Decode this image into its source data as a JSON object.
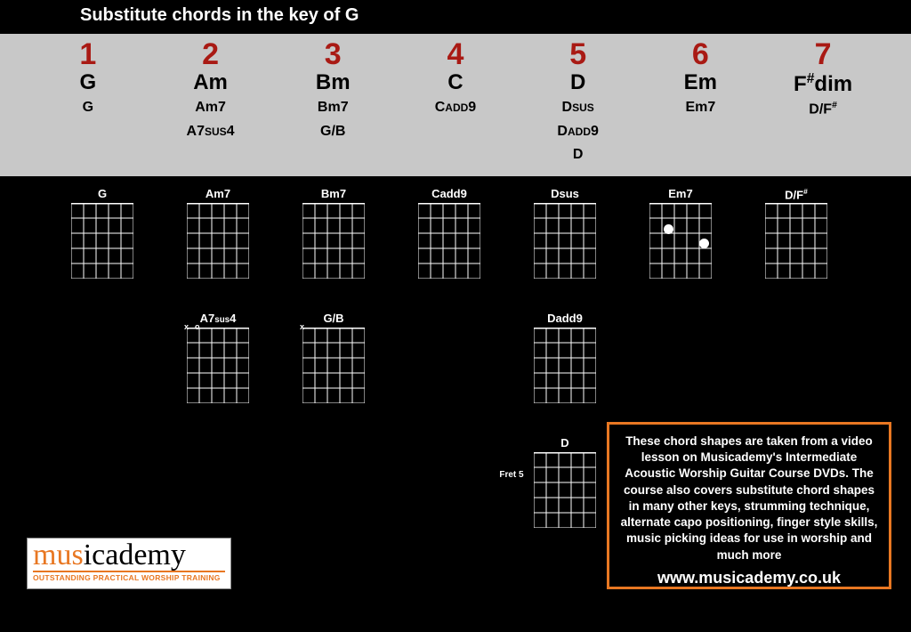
{
  "title": "Substitute chords in the key of G",
  "degrees": [
    {
      "num": "1",
      "primary": "G",
      "subs": [
        "G"
      ]
    },
    {
      "num": "2",
      "primary": "Am",
      "subs": [
        "Am7",
        "A7sus4"
      ]
    },
    {
      "num": "3",
      "primary": "Bm",
      "subs": [
        "Bm7",
        "G/B"
      ]
    },
    {
      "num": "4",
      "primary": "C",
      "subs": [
        "Cadd9"
      ]
    },
    {
      "num": "5",
      "primary": "D",
      "subs": [
        "Dsus",
        "Dadd9",
        "D"
      ]
    },
    {
      "num": "6",
      "primary": "Em",
      "subs": [
        "Em7"
      ]
    },
    {
      "num": "7",
      "primary": "F#dim",
      "subs": [
        "D/F#"
      ]
    }
  ],
  "chord_row1_labels": [
    "G",
    "Am7",
    "Bm7",
    "Cadd9",
    "Dsus",
    "Em7",
    "D/F#"
  ],
  "chord_row2_labels": [
    "A7sus4",
    "G/B",
    "Dadd9"
  ],
  "chord_row3a": "D",
  "chord_row3b": "Fret 5",
  "diagram": {
    "strings": 6,
    "frets": 5,
    "string_color": "#ffffff",
    "fret_color": "#ffffff",
    "dot_color": "#ffffff",
    "nut_width": 3,
    "line_width": 1
  },
  "infobox": "These chord shapes are taken from a video lesson on Musicademy's Intermediate Acoustic Worship Guitar Course DVDs. The course also covers substitute chord shapes in many other keys, strumming technique, alternate capo positioning, finger style skills, music picking ideas for use in worship and much more",
  "info_url": "www.musicademy.co.uk",
  "logo": {
    "brand": "musicademy",
    "tag": "OUTSTANDING PRACTICAL WORSHIP TRAINING",
    "accent": "#e87722"
  },
  "colors": {
    "bg": "#000000",
    "panel": "#c8c8c8",
    "degree": "#a91a14",
    "accent": "#e87722",
    "text_light": "#ffffff",
    "text_dark": "#000000"
  }
}
